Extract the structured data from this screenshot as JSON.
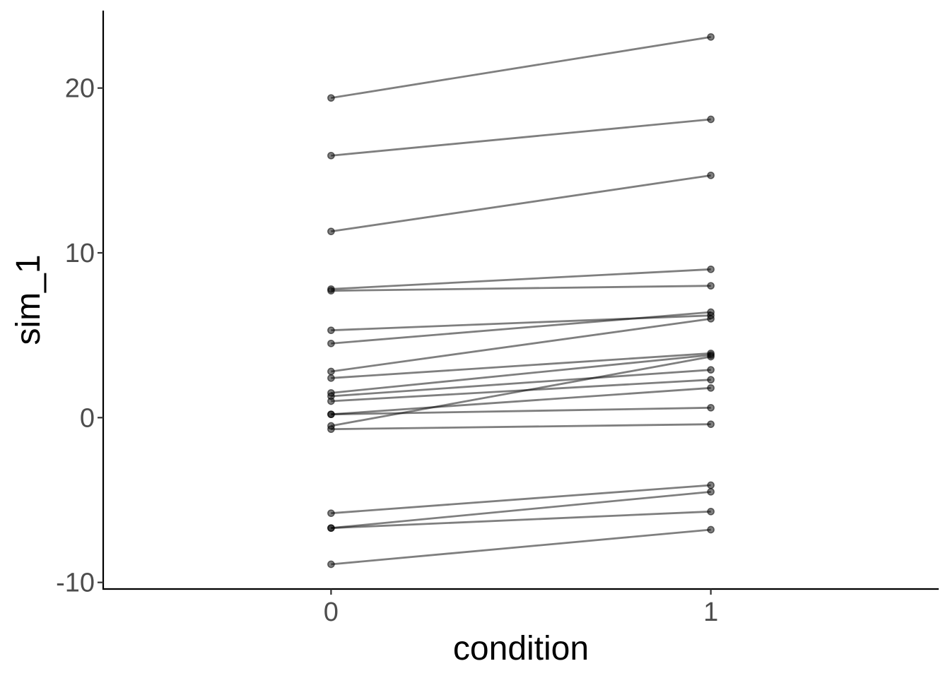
{
  "chart_data": {
    "type": "line",
    "title": "",
    "xlabel": "condition",
    "ylabel": "sim_1",
    "categories": [
      "0",
      "1"
    ],
    "x_ticks": [
      "0",
      "1"
    ],
    "y_ticks": [
      "-10",
      "0",
      "10",
      "20"
    ],
    "ylim": [
      -10.4,
      24.7
    ],
    "xlim": [
      -0.6,
      1.6
    ],
    "grid": false,
    "legend": "none",
    "point_color": "#000000",
    "line_color": "#000000",
    "series": [
      {
        "values": [
          19.4,
          23.1
        ]
      },
      {
        "values": [
          15.9,
          18.1
        ]
      },
      {
        "values": [
          11.3,
          14.7
        ]
      },
      {
        "values": [
          7.8,
          9.0
        ]
      },
      {
        "values": [
          7.7,
          8.0
        ]
      },
      {
        "values": [
          5.3,
          6.2
        ]
      },
      {
        "values": [
          4.5,
          6.4
        ]
      },
      {
        "values": [
          2.8,
          6.0
        ]
      },
      {
        "values": [
          2.4,
          3.9
        ]
      },
      {
        "values": [
          1.5,
          3.8
        ]
      },
      {
        "values": [
          1.3,
          2.9
        ]
      },
      {
        "values": [
          1.0,
          2.3
        ]
      },
      {
        "values": [
          0.2,
          1.8
        ]
      },
      {
        "values": [
          0.2,
          0.6
        ]
      },
      {
        "values": [
          -0.5,
          3.7
        ]
      },
      {
        "values": [
          -0.7,
          -0.4
        ]
      },
      {
        "values": [
          -5.8,
          -4.1
        ]
      },
      {
        "values": [
          -6.7,
          -4.5
        ]
      },
      {
        "values": [
          -6.7,
          -5.7
        ]
      },
      {
        "values": [
          -8.9,
          -6.8
        ]
      }
    ]
  }
}
